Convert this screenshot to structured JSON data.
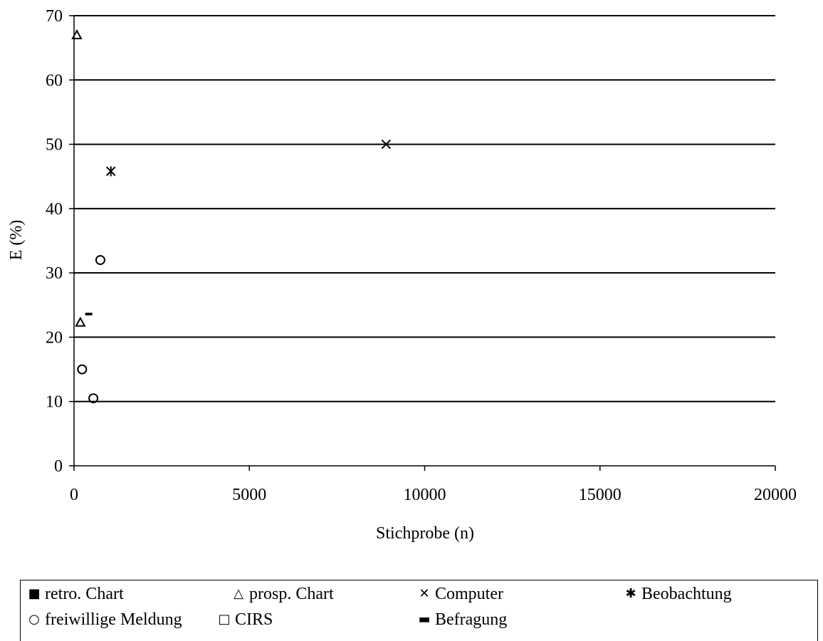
{
  "chart_data": {
    "type": "scatter",
    "title": "",
    "xlabel": "Stichprobe (n)",
    "ylabel": "E (%)",
    "xlim": [
      0,
      20000
    ],
    "ylim": [
      0,
      70
    ],
    "xticks": [
      0,
      5000,
      10000,
      15000,
      20000
    ],
    "yticks": [
      0,
      10,
      20,
      30,
      40,
      50,
      60,
      70
    ],
    "grid": "horizontal",
    "legend_position": "bottom",
    "series": [
      {
        "name": "retro. Chart",
        "marker": "filled-square",
        "points": []
      },
      {
        "name": "prosp. Chart",
        "marker": "triangle",
        "points": [
          {
            "x": 80,
            "y": 67
          },
          {
            "x": 180,
            "y": 22.3
          }
        ]
      },
      {
        "name": "Computer",
        "marker": "x",
        "points": [
          {
            "x": 8900,
            "y": 50
          }
        ]
      },
      {
        "name": "Beobachtung",
        "marker": "star",
        "points": [
          {
            "x": 1050,
            "y": 45.8
          }
        ]
      },
      {
        "name": "freiwillige Meldung",
        "marker": "circle",
        "points": [
          {
            "x": 750,
            "y": 32
          },
          {
            "x": 230,
            "y": 15
          },
          {
            "x": 550,
            "y": 10.5
          }
        ]
      },
      {
        "name": "CIRS",
        "marker": "square",
        "points": []
      },
      {
        "name": "Befragung",
        "marker": "dash",
        "points": [
          {
            "x": 420,
            "y": 23.6
          }
        ]
      }
    ]
  },
  "legend": {
    "items": [
      {
        "label": "retro. Chart",
        "symbol": "■"
      },
      {
        "label": "prosp. Chart",
        "symbol": "△"
      },
      {
        "label": "Computer",
        "symbol": "✕"
      },
      {
        "label": "Beobachtung",
        "symbol": "✱"
      },
      {
        "label": "freiwillige Meldung",
        "symbol": "○"
      },
      {
        "label": "CIRS",
        "symbol": "□"
      },
      {
        "label": "Befragung",
        "symbol": "▬"
      }
    ]
  }
}
